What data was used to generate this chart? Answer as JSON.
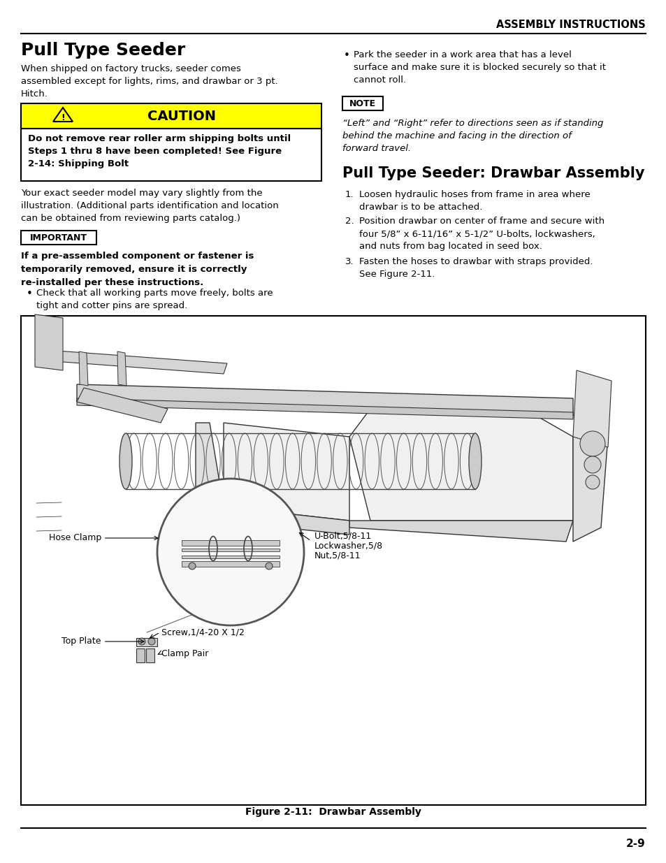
{
  "page_bg": "#ffffff",
  "header_text": "ASSEMBLY INSTRUCTIONS",
  "title_left": "Pull Type Seeder",
  "title_right": "Pull Type Seeder: Drawbar Assembly",
  "body_left_intro": "When shipped on factory trucks, seeder comes\nassembled except for lights, rims, and drawbar or 3 pt.\nHitch.",
  "caution_title": "CAUTION",
  "caution_body": "Do not remove rear roller arm shipping bolts until\nSteps 1 thru 8 have been completed! See Figure\n2-14: Shipping Bolt",
  "body_left_mid": "Your exact seeder model may vary slightly from the\nillustration. (Additional parts identification and location\ncan be obtained from reviewing parts catalog.)",
  "important_title": "IMPORTANT",
  "important_body": "If a pre-assembled component or fastener is\ntemporarily removed, ensure it is correctly\nre-installed per these instructions.",
  "bullet_left": "Check that all working parts move freely, bolts are\ntight and cotter pins are spread.",
  "bullet_right": "Park the seeder in a work area that has a level\nsurface and make sure it is blocked securely so that it\ncannot roll.",
  "note_title": "NOTE",
  "note_body": "“Left” and “Right” refer to directions seen as if standing\nbehind the machine and facing in the direction of\nforward travel.",
  "drawbar_steps": [
    "Loosen hydraulic hoses from frame in area where\ndrawbar is to be attached.",
    "Position drawbar on center of frame and secure with\nfour 5/8” x 6-11/16” x 5-1/2” U-bolts, lockwashers,\nand nuts from bag located in seed box.",
    "Fasten the hoses to drawbar with straps provided.\nSee Figure 2-11."
  ],
  "figure_caption": "Figure 2-11:  Drawbar Assembly",
  "page_number": "2-9",
  "caution_bg": "#ffff00",
  "caution_border": "#000000",
  "important_border": "#000000",
  "note_border": "#000000",
  "label_hose_clamp": "Hose Clamp",
  "label_top_plate": "Top Plate",
  "label_screw": "Screw,1/4-20 X 1/2",
  "label_clamp_pair": "Clamp Pair",
  "label_ubolt": "U-Bolt,5/8-11",
  "label_lockwasher": "Lockwasher,5/8",
  "label_nut": "Nut,5/8-11"
}
